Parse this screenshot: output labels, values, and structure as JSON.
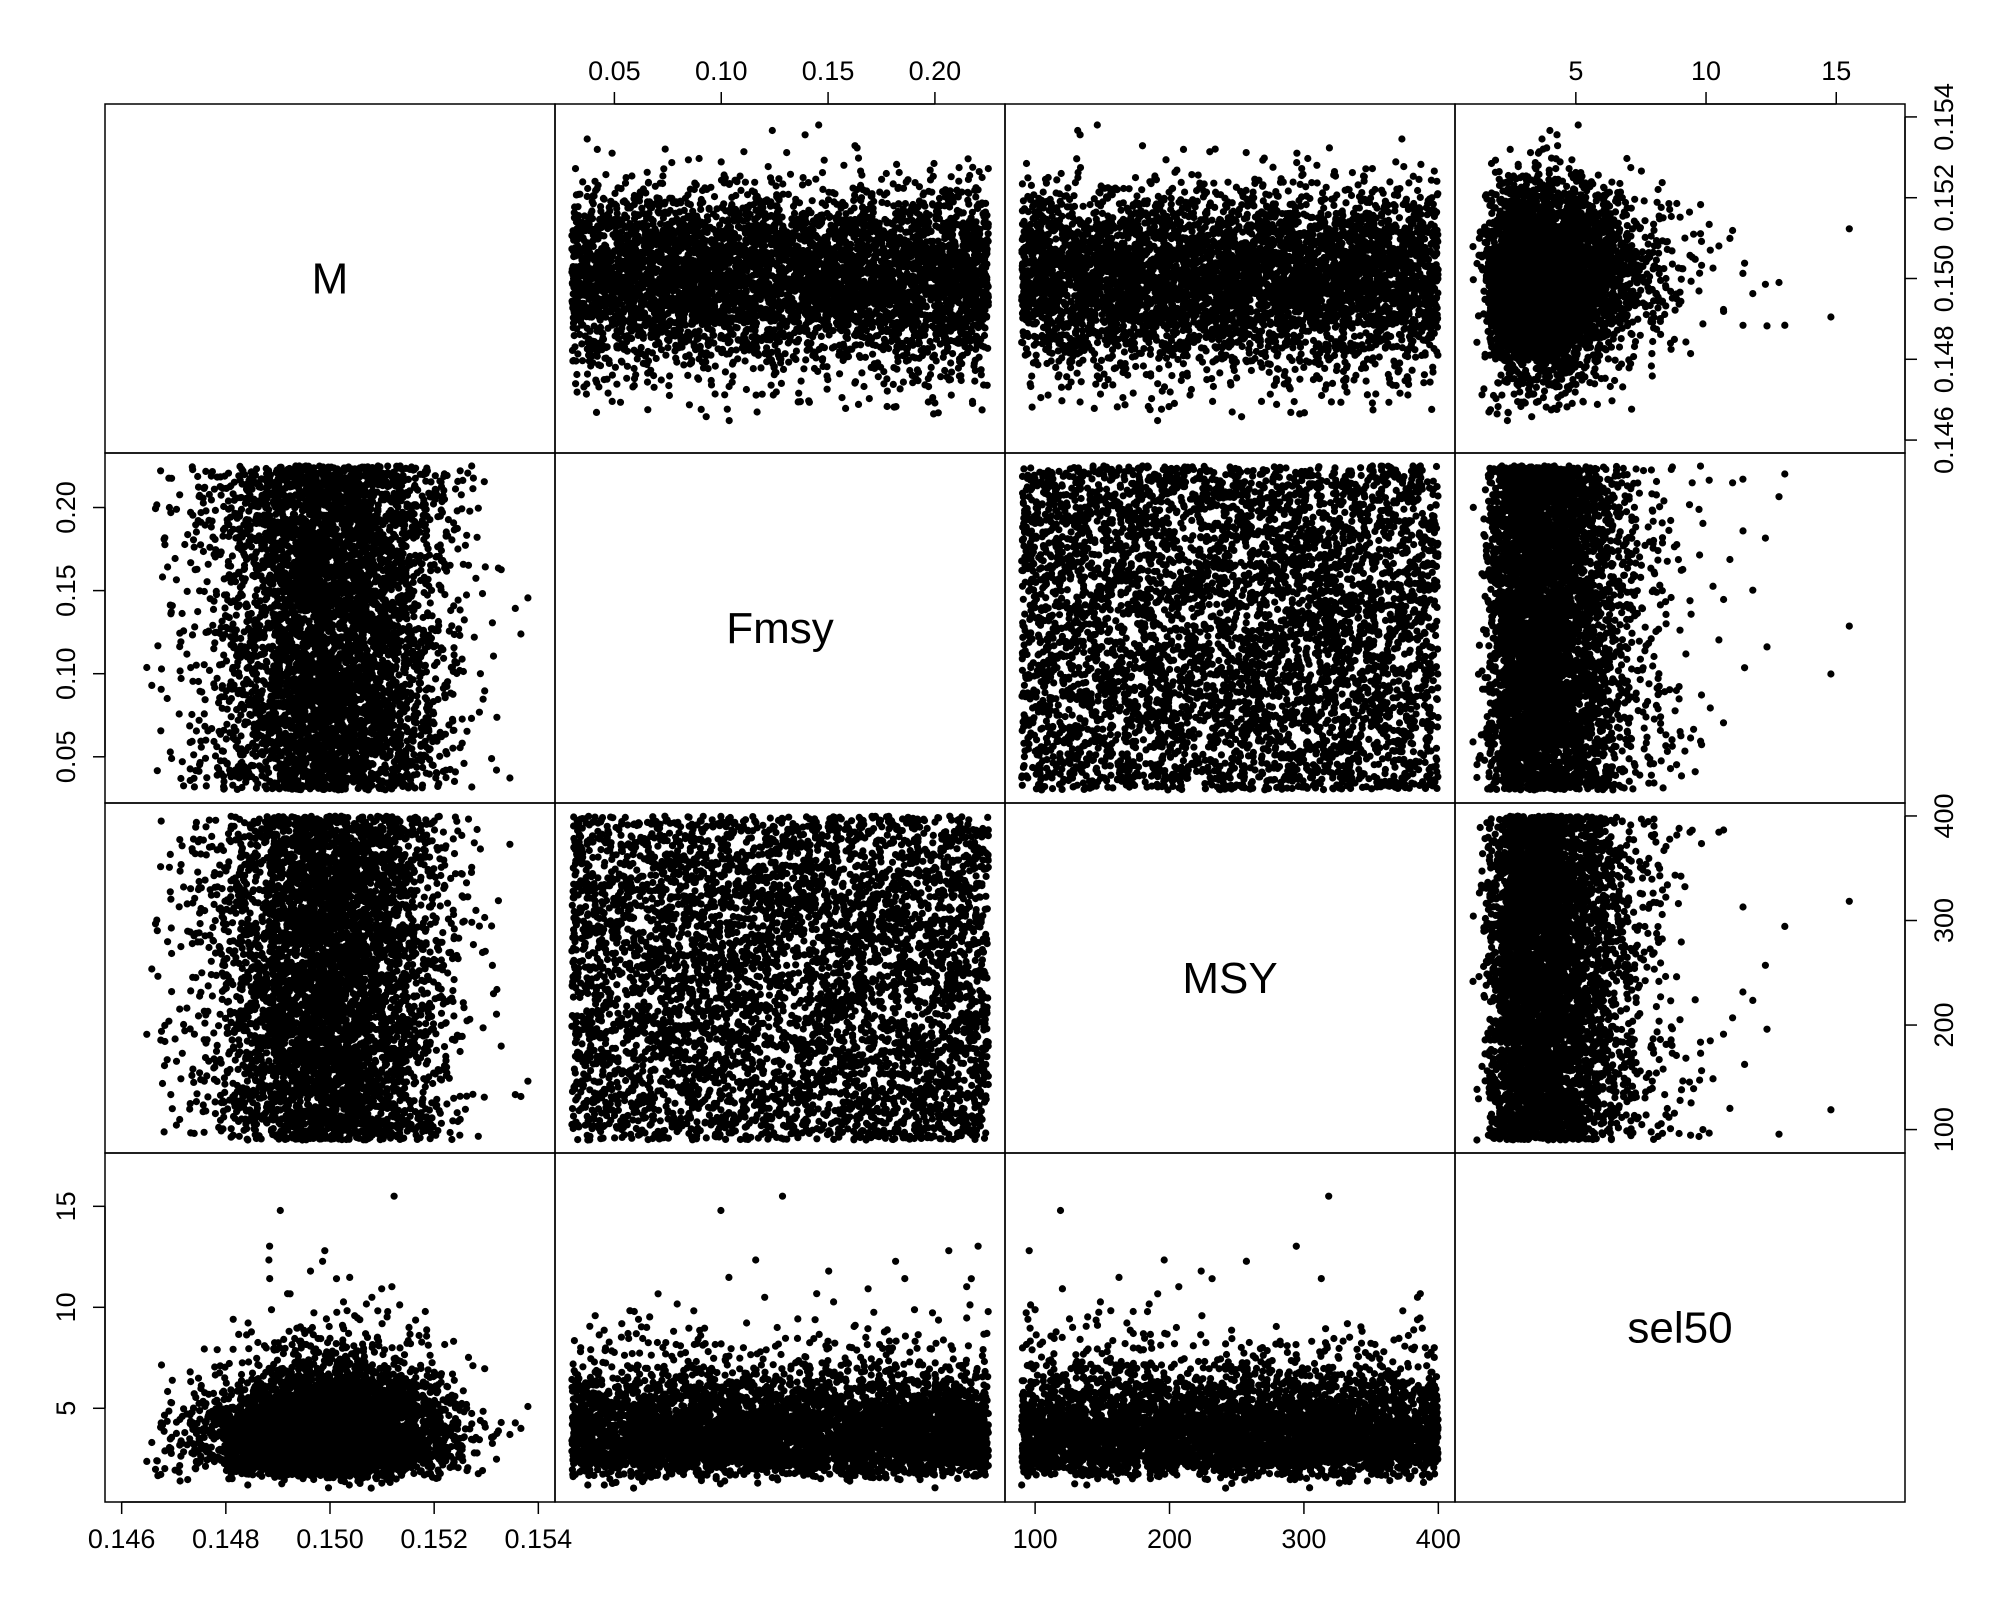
{
  "chart_data": {
    "type": "scatter",
    "subtype": "scatterplot-matrix",
    "title": "",
    "n_points_approx": 5000,
    "point_color": "#000000",
    "variables": [
      {
        "name": "M",
        "label": "M",
        "range": [
          0.146,
          0.154
        ],
        "distribution": "normal",
        "mean": 0.15,
        "sd": 0.0011,
        "ticks": [
          0.146,
          0.148,
          0.15,
          0.152,
          0.154
        ],
        "tick_labels": [
          "0.146",
          "0.148",
          "0.150",
          "0.152",
          "0.154"
        ],
        "axis_side": "bottom",
        "axis_side_alt": "right"
      },
      {
        "name": "Fmsy",
        "label": "Fmsy",
        "range": [
          0.03,
          0.225
        ],
        "distribution": "uniform",
        "ticks": [
          0.05,
          0.1,
          0.15,
          0.2
        ],
        "tick_labels": [
          "0.05",
          "0.10",
          "0.15",
          "0.20"
        ],
        "axis_side": "top",
        "axis_side_alt": "left"
      },
      {
        "name": "MSY",
        "label": "MSY",
        "range": [
          90,
          400
        ],
        "distribution": "uniform",
        "ticks": [
          100,
          200,
          300,
          400
        ],
        "tick_labels": [
          "100",
          "200",
          "300",
          "400"
        ],
        "axis_side": "bottom",
        "axis_side_alt": "right"
      },
      {
        "name": "sel50",
        "label": "sel50",
        "range": [
          1,
          17
        ],
        "distribution": "lognormal",
        "median": 3.8,
        "ticks": [
          5,
          10,
          15
        ],
        "tick_labels": [
          "5",
          "10",
          "15"
        ],
        "axis_side": "top",
        "axis_side_alt": "left"
      }
    ],
    "grid": false,
    "legend": "none"
  }
}
